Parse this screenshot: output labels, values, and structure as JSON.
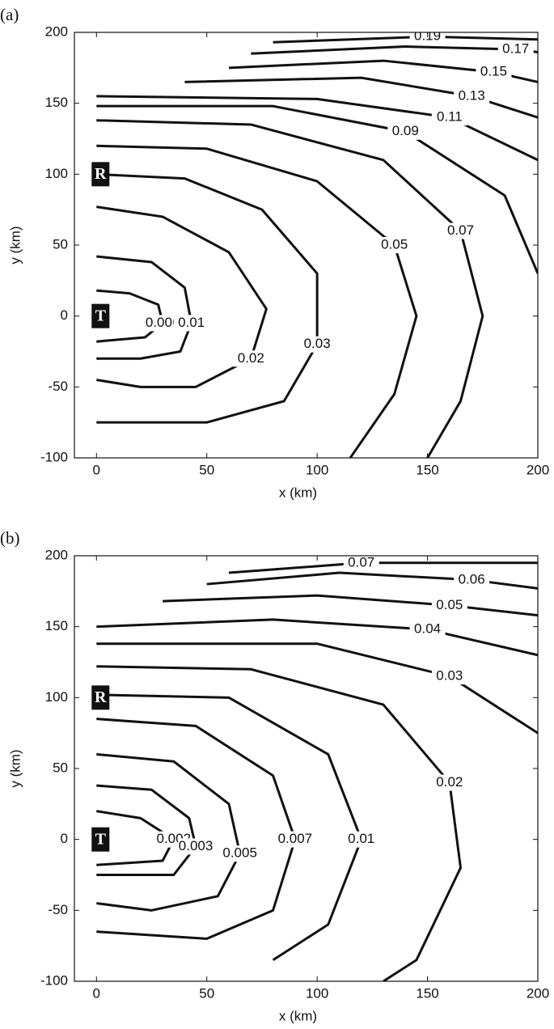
{
  "chart_data": [
    {
      "type": "contour",
      "title": "(a)",
      "xlabel": "x (km)",
      "ylabel": "y (km)",
      "xlim": [
        -10,
        200
      ],
      "ylim": [
        -100,
        200
      ],
      "xticks": [
        0,
        50,
        100,
        150,
        200
      ],
      "yticks": [
        -100,
        -50,
        0,
        50,
        100,
        150,
        200
      ],
      "color": "#111111",
      "annotations": [
        {
          "text": "R",
          "x": 0,
          "y": 100
        },
        {
          "text": "T",
          "x": 0,
          "y": 0
        }
      ],
      "series": [
        {
          "name": "0.006",
          "x": [
            0,
            15,
            28,
            30,
            22,
            0
          ],
          "y": [
            18,
            16,
            8,
            -5,
            -15,
            -18
          ]
        },
        {
          "name": "0.01",
          "x": [
            0,
            25,
            40,
            43,
            38,
            20,
            0
          ],
          "y": [
            42,
            38,
            20,
            -5,
            -25,
            -30,
            -30
          ]
        },
        {
          "name": "0.02",
          "x": [
            0,
            30,
            60,
            77,
            70,
            45,
            20,
            0
          ],
          "y": [
            77,
            70,
            45,
            5,
            -30,
            -50,
            -50,
            -45
          ]
        },
        {
          "name": "0.03",
          "x": [
            0,
            40,
            75,
            100,
            100,
            85,
            50,
            0
          ],
          "y": [
            100,
            97,
            75,
            30,
            -20,
            -60,
            -75,
            -75
          ]
        },
        {
          "name": "0.05",
          "x": [
            0,
            50,
            100,
            135,
            145,
            135,
            115
          ],
          "y": [
            120,
            118,
            95,
            50,
            0,
            -55,
            -100
          ]
        },
        {
          "name": "0.07",
          "x": [
            0,
            70,
            130,
            165,
            175,
            165,
            150
          ],
          "y": [
            138,
            135,
            110,
            60,
            0,
            -60,
            -100
          ]
        },
        {
          "name": "0.09",
          "x": [
            0,
            80,
            140,
            185,
            200
          ],
          "y": [
            148,
            148,
            130,
            85,
            30
          ]
        },
        {
          "name": "0.11",
          "x": [
            0,
            100,
            160,
            200
          ],
          "y": [
            155,
            153,
            140,
            110
          ]
        },
        {
          "name": "0.13",
          "x": [
            40,
            120,
            170,
            200
          ],
          "y": [
            165,
            168,
            155,
            140
          ]
        },
        {
          "name": "0.15",
          "x": [
            60,
            130,
            180,
            200
          ],
          "y": [
            175,
            180,
            172,
            165
          ]
        },
        {
          "name": "0.17",
          "x": [
            70,
            140,
            190,
            200
          ],
          "y": [
            185,
            190,
            188,
            186
          ]
        },
        {
          "name": "0.19",
          "x": [
            80,
            150,
            200
          ],
          "y": [
            193,
            197,
            195
          ]
        }
      ]
    },
    {
      "type": "contour",
      "title": "(b)",
      "xlabel": "x (km)",
      "ylabel": "y (km)",
      "xlim": [
        -10,
        200
      ],
      "ylim": [
        -100,
        200
      ],
      "xticks": [
        0,
        50,
        100,
        150,
        200
      ],
      "yticks": [
        -100,
        -50,
        0,
        50,
        100,
        150,
        200
      ],
      "color": "#111111",
      "annotations": [
        {
          "text": "R",
          "x": 0,
          "y": 100
        },
        {
          "text": "T",
          "x": 0,
          "y": 0
        }
      ],
      "series": [
        {
          "name": "0.002",
          "x": [
            0,
            20,
            35,
            30,
            0
          ],
          "y": [
            20,
            15,
            0,
            -15,
            -18
          ]
        },
        {
          "name": "0.003",
          "x": [
            0,
            25,
            42,
            45,
            35,
            0
          ],
          "y": [
            38,
            35,
            15,
            -5,
            -25,
            -25
          ]
        },
        {
          "name": "0.005",
          "x": [
            0,
            35,
            60,
            65,
            55,
            25,
            0
          ],
          "y": [
            60,
            55,
            25,
            -10,
            -40,
            -50,
            -45
          ]
        },
        {
          "name": "0.007",
          "x": [
            0,
            45,
            80,
            90,
            80,
            50,
            0
          ],
          "y": [
            85,
            80,
            45,
            0,
            -50,
            -70,
            -65
          ]
        },
        {
          "name": "0.01",
          "x": [
            0,
            60,
            105,
            120,
            105,
            80
          ],
          "y": [
            102,
            100,
            60,
            0,
            -60,
            -85
          ]
        },
        {
          "name": "0.02",
          "x": [
            0,
            70,
            130,
            160,
            165,
            145,
            130
          ],
          "y": [
            122,
            120,
            95,
            40,
            -20,
            -85,
            -100
          ]
        },
        {
          "name": "0.03",
          "x": [
            0,
            100,
            160,
            200
          ],
          "y": [
            138,
            138,
            115,
            75
          ]
        },
        {
          "name": "0.04",
          "x": [
            0,
            80,
            150,
            200
          ],
          "y": [
            150,
            155,
            148,
            130
          ]
        },
        {
          "name": "0.05",
          "x": [
            30,
            100,
            160,
            200
          ],
          "y": [
            168,
            172,
            165,
            158
          ]
        },
        {
          "name": "0.06",
          "x": [
            50,
            110,
            170,
            200
          ],
          "y": [
            180,
            188,
            183,
            177
          ]
        },
        {
          "name": "0.07",
          "x": [
            60,
            120,
            200
          ],
          "y": [
            188,
            195,
            195
          ]
        }
      ]
    }
  ]
}
